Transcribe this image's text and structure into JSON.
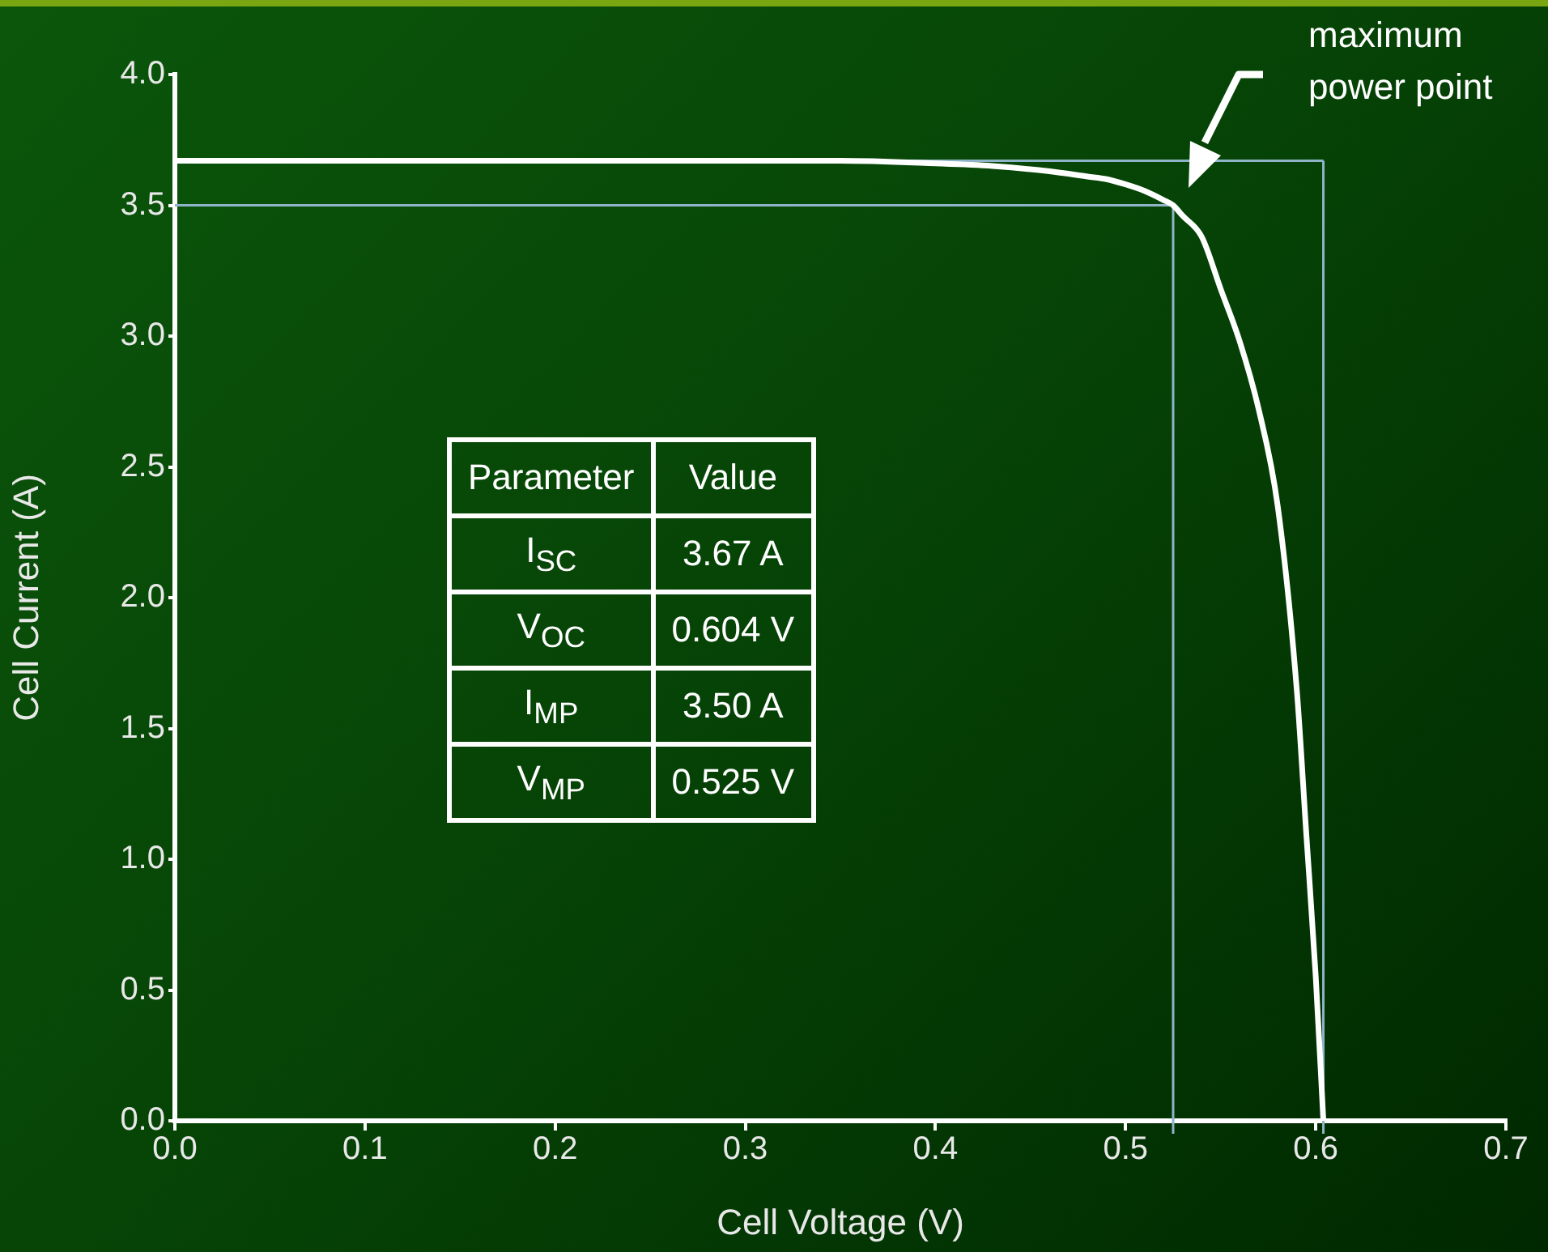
{
  "chart_data": {
    "type": "line",
    "xlabel": "Cell Voltage (V)",
    "ylabel": "Cell Current (A)",
    "xlim": [
      0,
      0.7
    ],
    "xticks": [
      {
        "value": 0,
        "label": "0.0"
      },
      0.1,
      0.2,
      0.3,
      0.4,
      0.5,
      0.6,
      0.7
    ],
    "ylim": [
      0,
      4
    ],
    "yticks": [
      {
        "value": 0,
        "label": "0.0"
      },
      0.5,
      {
        "value": 1,
        "label": "1.0"
      },
      1.5,
      {
        "value": 2,
        "label": "2.0"
      },
      2.5,
      {
        "value": 3,
        "label": "3.0"
      },
      3.5,
      {
        "value": 4,
        "label": "4.0"
      }
    ],
    "x": [
      0,
      0.1,
      0.2,
      0.3,
      0.35,
      0.4,
      0.43,
      0.46,
      0.48,
      0.49,
      0.5,
      0.51,
      0.52,
      0.525,
      0.53,
      0.54,
      0.55,
      0.56,
      0.57,
      0.58,
      0.59,
      0.595,
      0.6,
      0.604
    ],
    "series": [
      {
        "color": "#ffffff",
        "values": [
          3.67,
          3.67,
          3.67,
          3.67,
          3.67,
          3.66,
          3.65,
          3.63,
          3.61,
          3.6,
          3.58,
          3.555,
          3.52,
          3.5,
          3.46,
          3.38,
          3.18,
          2.98,
          2.72,
          2.35,
          1.65,
          1.1,
          0.55,
          0
        ]
      }
    ],
    "ref_lines": [
      {
        "axis": "y",
        "value": 3.67,
        "color": "#8fb4c8"
      },
      {
        "axis": "x",
        "value": 0.604,
        "color": "#8fb4c8"
      },
      {
        "axis": "y",
        "value": 3.5,
        "color": "#8fb4c8"
      },
      {
        "axis": "x",
        "value": 0.525,
        "color": "#8fb4c8"
      }
    ],
    "annotations": [
      "maximum power point",
      "Parameter",
      "Value",
      "I$_{SC}$",
      "3.67 A",
      "V$_{OC}$",
      "0.604 V",
      "I$_{MP}$",
      "3.50 A",
      "V$_{MP}$",
      "0.525 V"
    ]
  }
}
